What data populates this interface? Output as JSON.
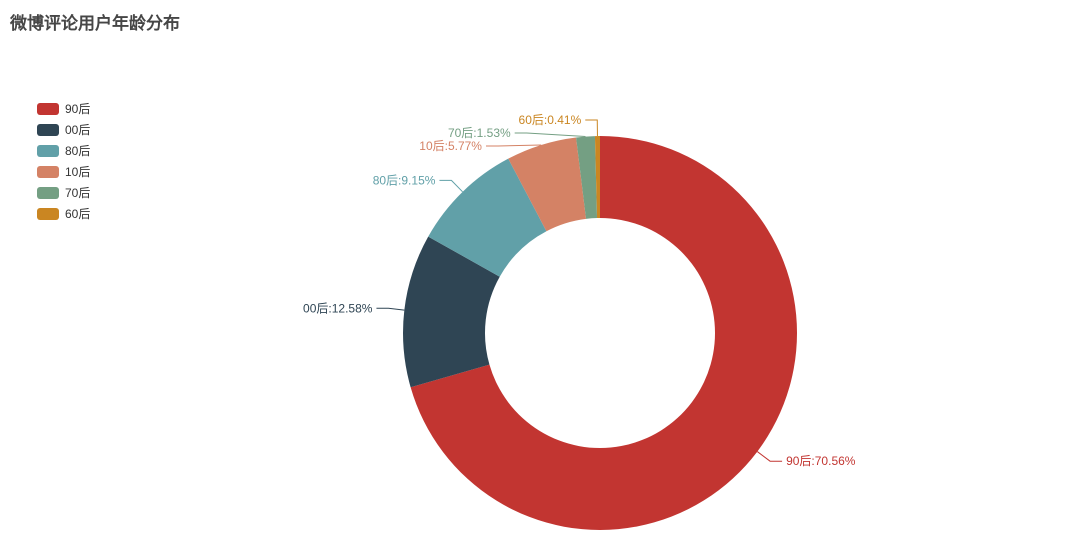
{
  "title": {
    "text": "微博评论用户年龄分布",
    "color": "#464646"
  },
  "chart_data": {
    "type": "pie",
    "subtype": "donut",
    "title": "微博评论用户年龄分布",
    "categories": [
      "90后",
      "00后",
      "80后",
      "10后",
      "70后",
      "60后"
    ],
    "values": [
      70.56,
      12.58,
      9.15,
      5.77,
      1.53,
      0.41
    ],
    "unit": "%",
    "labels": [
      "90后:70.56%",
      "00后:12.58%",
      "80后:9.15%",
      "10后:5.77%",
      "70后:1.53%",
      "60后:0.41%"
    ],
    "colors": [
      "#c23531",
      "#2f4554",
      "#61a0a8",
      "#d48265",
      "#749f83",
      "#ca8622"
    ],
    "legend_position": "left",
    "legend_text_color": "#333333",
    "background": "#ffffff",
    "start_angle": "top",
    "direction": "clockwise"
  }
}
